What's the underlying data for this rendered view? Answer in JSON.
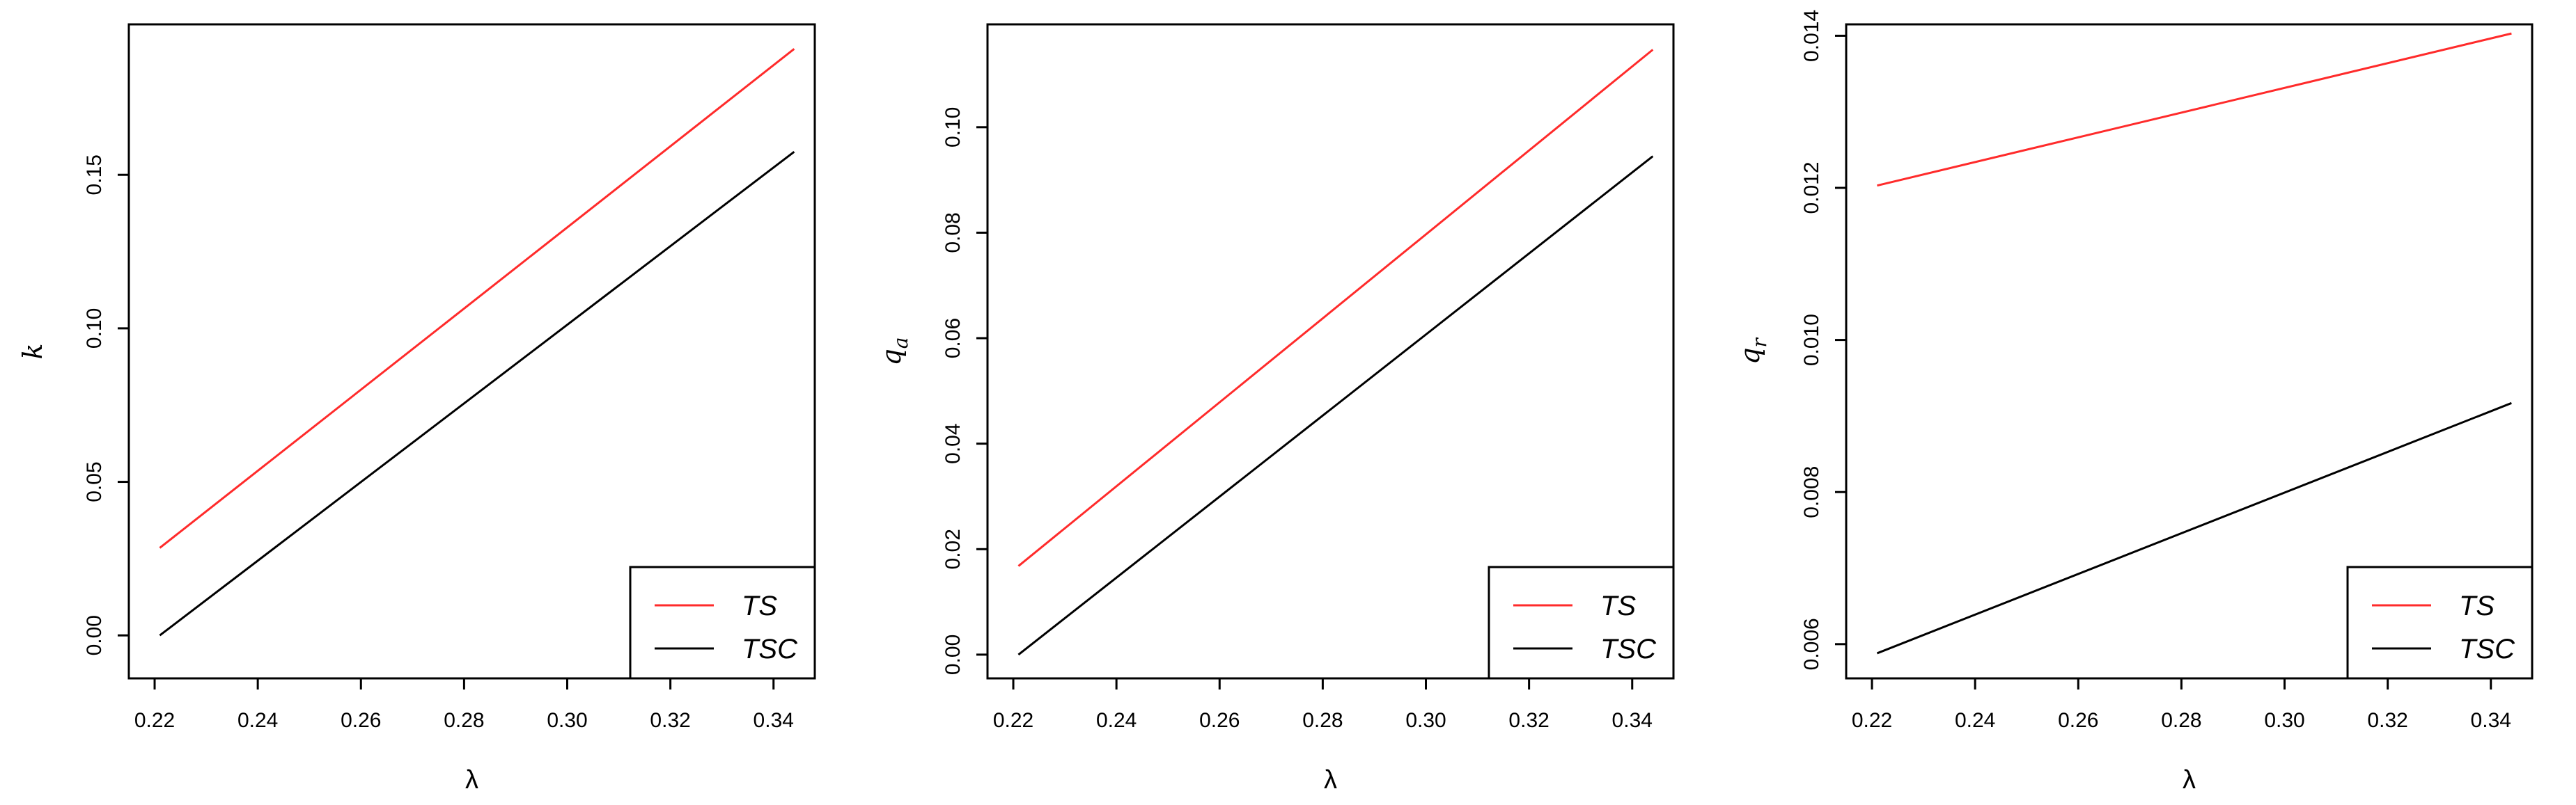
{
  "chart_data": [
    {
      "type": "line",
      "xlabel": "λ",
      "ylabel": "k",
      "ylabel_sub": "",
      "xlim": [
        0.215,
        0.348
      ],
      "ylim": [
        -0.014,
        0.199
      ],
      "xticks": [
        "0.22",
        "0.24",
        "0.26",
        "0.28",
        "0.30",
        "0.32",
        "0.34"
      ],
      "yticks": [
        "0.00",
        "0.05",
        "0.10",
        "0.15"
      ],
      "legend_position": "bottom-right",
      "series": [
        {
          "name": "TS",
          "color": "#ff2b2b",
          "x": [
            0.221,
            0.344
          ],
          "y": [
            0.0285,
            0.191
          ]
        },
        {
          "name": "TSC",
          "color": "#000000",
          "x": [
            0.221,
            0.344
          ],
          "y": [
            0.0,
            0.1575
          ]
        }
      ]
    },
    {
      "type": "line",
      "xlabel": "λ",
      "ylabel": "q",
      "ylabel_sub": "a",
      "xlim": [
        0.215,
        0.348
      ],
      "ylim": [
        -0.0045,
        0.1195
      ],
      "xticks": [
        "0.22",
        "0.24",
        "0.26",
        "0.28",
        "0.30",
        "0.32",
        "0.34"
      ],
      "yticks": [
        "0.00",
        "0.02",
        "0.04",
        "0.06",
        "0.08",
        "0.10"
      ],
      "legend_position": "bottom-right",
      "series": [
        {
          "name": "TS",
          "color": "#ff2b2b",
          "x": [
            0.221,
            0.344
          ],
          "y": [
            0.0168,
            0.1147
          ]
        },
        {
          "name": "TSC",
          "color": "#000000",
          "x": [
            0.221,
            0.344
          ],
          "y": [
            0.0,
            0.0945
          ]
        }
      ]
    },
    {
      "type": "line",
      "xlabel": "λ",
      "ylabel": "q",
      "ylabel_sub": "r",
      "xlim": [
        0.215,
        0.348
      ],
      "ylim": [
        0.00555,
        0.01415
      ],
      "xticks": [
        "0.22",
        "0.24",
        "0.26",
        "0.28",
        "0.30",
        "0.32",
        "0.34"
      ],
      "yticks": [
        "0.006",
        "0.008",
        "0.010",
        "0.012",
        "0.014"
      ],
      "legend_position": "bottom-right",
      "series": [
        {
          "name": "TS",
          "color": "#ff2b2b",
          "x": [
            0.221,
            0.344
          ],
          "y": [
            0.01203,
            0.01403
          ]
        },
        {
          "name": "TSC",
          "color": "#000000",
          "x": [
            0.221,
            0.344
          ],
          "y": [
            0.00588,
            0.00917
          ]
        }
      ]
    }
  ]
}
